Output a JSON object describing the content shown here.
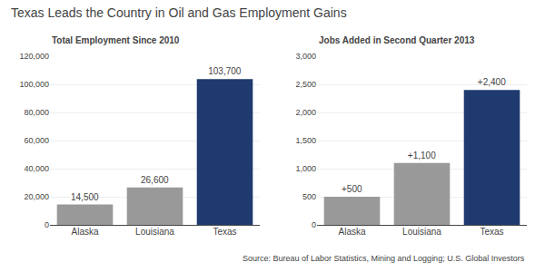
{
  "chart_data": [
    {
      "type": "bar",
      "title": "Texas Leads the Country in Oil and Gas Employment Gains",
      "subtitle": "Total Employment Since 2010",
      "categories": [
        "Alaska",
        "Louisiana",
        "Texas"
      ],
      "values": [
        14500,
        26600,
        103700
      ],
      "value_labels": [
        "14,500",
        "26,600",
        "103,700"
      ],
      "colors": [
        "#999999",
        "#999999",
        "#1e3a6e"
      ],
      "ylim": [
        0,
        120000
      ],
      "yticks": [
        0,
        {
          "value": 20000,
          "label": "20,000"
        },
        {
          "value": 40000,
          "label": "40,000"
        },
        {
          "value": 60000,
          "label": "60,000"
        },
        {
          "value": 80000,
          "label": "80,000"
        },
        {
          "value": 100000,
          "label": "100,000"
        },
        {
          "value": 120000,
          "label": "120,000"
        }
      ],
      "grid": true,
      "data_labels": true
    },
    {
      "type": "bar",
      "subtitle": "Jobs Added in Second Quarter 2013",
      "categories": [
        "Alaska",
        "Louisiana",
        "Texas"
      ],
      "values": [
        500,
        1100,
        2400
      ],
      "value_labels": [
        "+500",
        "+1,100",
        "+2,400"
      ],
      "colors": [
        "#999999",
        "#999999",
        "#1e3a6e"
      ],
      "ylim": [
        0,
        3000
      ],
      "yticks": [
        0,
        500,
        {
          "value": 1000,
          "label": "1,000"
        },
        {
          "value": 1500,
          "label": "1,500"
        },
        {
          "value": 2000,
          "label": "2,000"
        },
        {
          "value": 2500,
          "label": "2,500"
        },
        {
          "value": 3000,
          "label": "3,000"
        }
      ],
      "grid": true,
      "data_labels": true,
      "annotation": "Source: Bureau of Labor Statistics, Mining and Logging; U.S. Global Investors"
    }
  ]
}
